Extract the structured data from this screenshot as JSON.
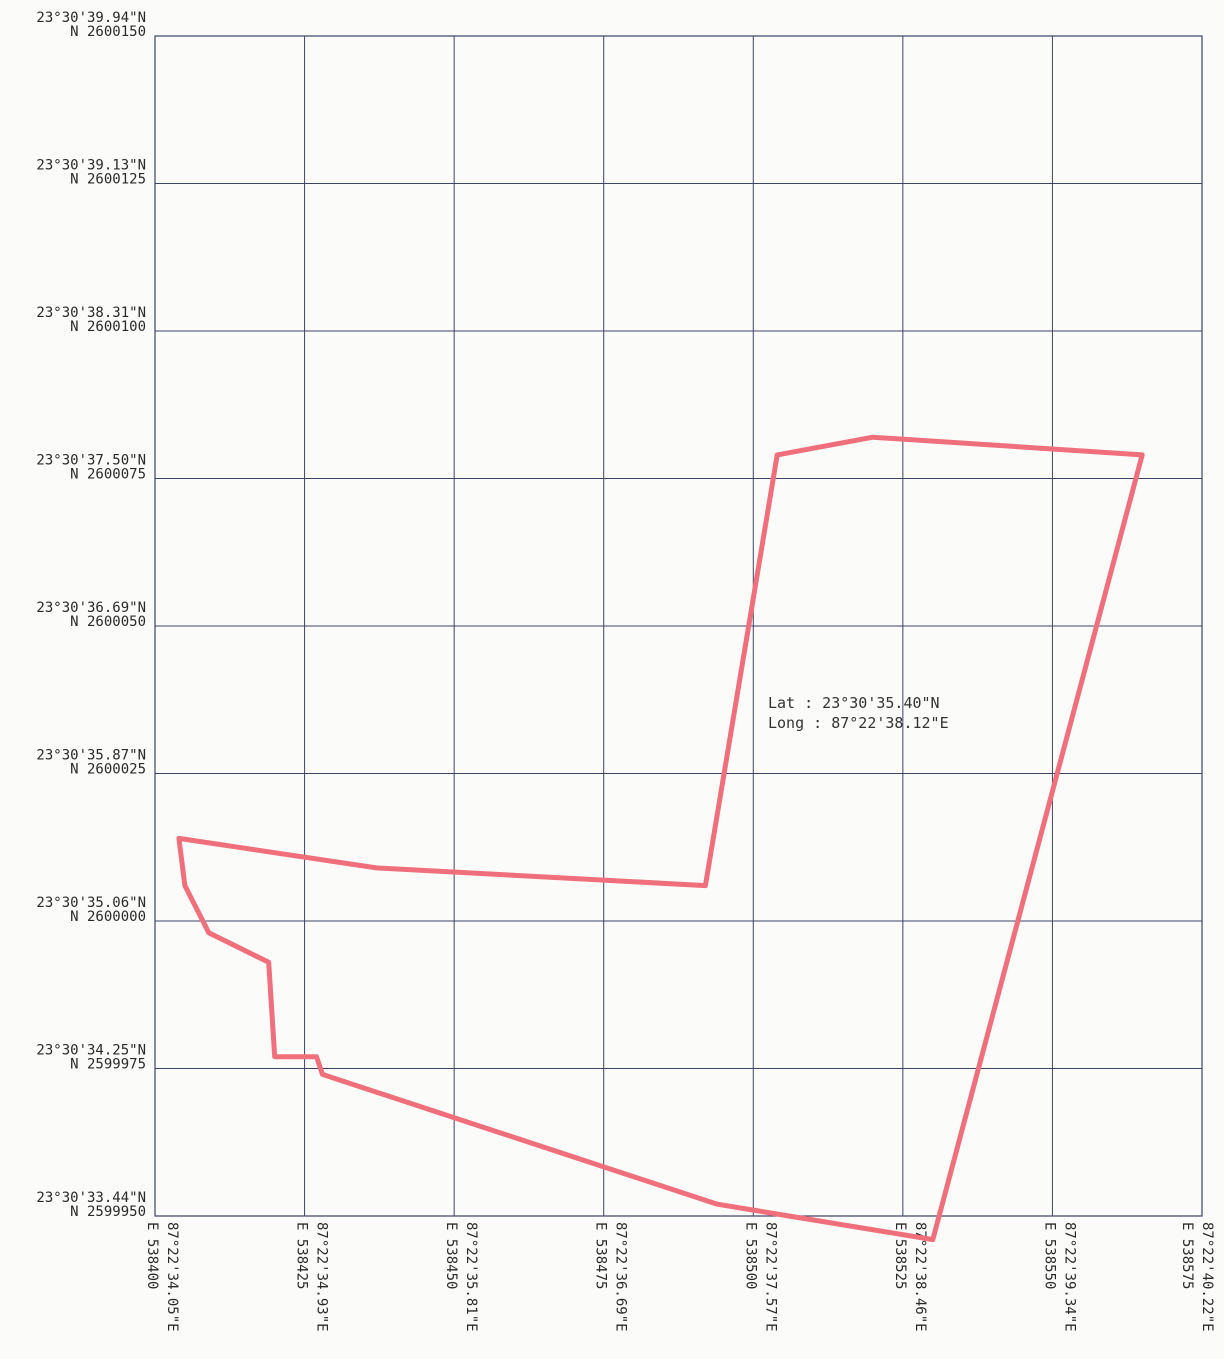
{
  "map": {
    "projection_note": "UTM grid with geographic labels",
    "easting_range": [
      538400,
      538575
    ],
    "northing_range": [
      2599950,
      2600150
    ],
    "grid_interval": 25,
    "northing_labels": [
      {
        "utm": "N 2600150",
        "geo": "23°30'39.94\"N",
        "northing": 2600150
      },
      {
        "utm": "N 2600125",
        "geo": "23°30'39.13\"N",
        "northing": 2600125
      },
      {
        "utm": "N 2600100",
        "geo": "23°30'38.31\"N",
        "northing": 2600100
      },
      {
        "utm": "N 2600075",
        "geo": "23°30'37.50\"N",
        "northing": 2600075
      },
      {
        "utm": "N 2600050",
        "geo": "23°30'36.69\"N",
        "northing": 2600050
      },
      {
        "utm": "N 2600025",
        "geo": "23°30'35.87\"N",
        "northing": 2600025
      },
      {
        "utm": "N 2600000",
        "geo": "23°30'35.06\"N",
        "northing": 2600000
      },
      {
        "utm": "N 2599975",
        "geo": "23°30'34.25\"N",
        "northing": 2599975
      },
      {
        "utm": "N 2599950",
        "geo": "23°30'33.44\"N",
        "northing": 2599950
      }
    ],
    "easting_labels": [
      {
        "utm": "E 538400",
        "geo": "87°22'34.05\"E",
        "easting": 538400
      },
      {
        "utm": "E 538425",
        "geo": "87°22'34.93\"E",
        "easting": 538425
      },
      {
        "utm": "E 538450",
        "geo": "87°22'35.81\"E",
        "easting": 538450
      },
      {
        "utm": "E 538475",
        "geo": "87°22'36.69\"E",
        "easting": 538475
      },
      {
        "utm": "E 538500",
        "geo": "87°22'37.57\"E",
        "easting": 538500
      },
      {
        "utm": "E 538525",
        "geo": "87°22'38.46\"E",
        "easting": 538525
      },
      {
        "utm": "E 538550",
        "geo": "87°22'39.34\"E",
        "easting": 538550
      },
      {
        "utm": "E 538575",
        "geo": "87°22'40.22\"E",
        "easting": 538575
      }
    ],
    "annotation": {
      "lat": "Lat : 23°30'35.40\"N",
      "long": "Long : 87°22'38.12\"E",
      "easting": 538519,
      "northing": 2600034
    },
    "boundary": {
      "color": "#ef6f7c",
      "points": [
        [
          538504,
          2600079
        ],
        [
          538520,
          2600082
        ],
        [
          538565,
          2600079
        ],
        [
          538530,
          2599946
        ],
        [
          538494,
          2599952
        ],
        [
          538428,
          2599974
        ],
        [
          538427,
          2599977
        ],
        [
          538420,
          2599977
        ],
        [
          538419,
          2599993
        ],
        [
          538409,
          2599998
        ],
        [
          538405,
          2600006
        ],
        [
          538404,
          2600014
        ],
        [
          538437,
          2600009
        ],
        [
          538492,
          2600006
        ],
        [
          538492,
          2600006
        ]
      ]
    },
    "grid_color": "#3e4466"
  }
}
